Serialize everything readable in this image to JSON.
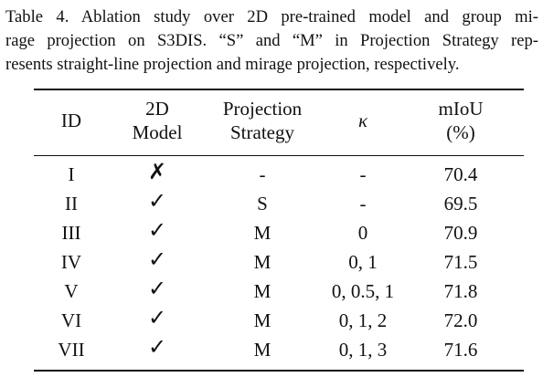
{
  "caption": {
    "lines": [
      "Table 4. Ablation study over 2D pre-trained model and group mi-",
      "rage projection on S3DIS. “S” and “M” in Projection Strategy rep-",
      "resents straight-line projection and mirage projection, respectively."
    ]
  },
  "table": {
    "headers": {
      "id": [
        "ID"
      ],
      "model": [
        "2D",
        "Model"
      ],
      "strategy": [
        "Projection",
        "Strategy"
      ],
      "kappa": [
        "κ"
      ],
      "miou": [
        "mIoU",
        "(%)"
      ]
    },
    "rows": [
      {
        "id": "I",
        "model": "✗",
        "strategy": "-",
        "kappa": "-",
        "miou": "70.4"
      },
      {
        "id": "II",
        "model": "✓",
        "strategy": "S",
        "kappa": "-",
        "miou": "69.5"
      },
      {
        "id": "III",
        "model": "✓",
        "strategy": "M",
        "kappa": "0",
        "miou": "70.9"
      },
      {
        "id": "IV",
        "model": "✓",
        "strategy": "M",
        "kappa": "0, 1",
        "miou": "71.5"
      },
      {
        "id": "V",
        "model": "✓",
        "strategy": "M",
        "kappa": "0, 0.5, 1",
        "miou": "71.8"
      },
      {
        "id": "VI",
        "model": "✓",
        "strategy": "M",
        "kappa": "0, 1, 2",
        "miou": "72.0"
      },
      {
        "id": "VII",
        "model": "✓",
        "strategy": "M",
        "kappa": "0, 1, 3",
        "miou": "71.6"
      }
    ]
  }
}
